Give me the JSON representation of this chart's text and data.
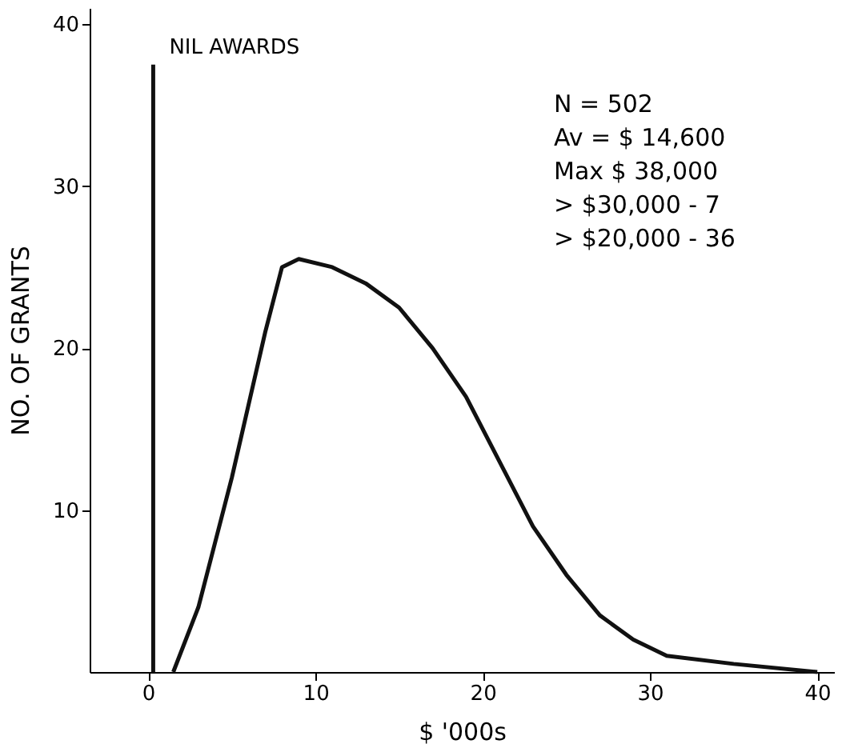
{
  "chart_data": {
    "type": "line",
    "xlabel": "$ '000s",
    "ylabel": "NO. OF GRANTS",
    "xlim": [
      -3.5,
      41
    ],
    "ylim": [
      0,
      41
    ],
    "xticks": [
      0,
      10,
      20,
      30,
      40
    ],
    "yticks": [
      10,
      20,
      30,
      40
    ],
    "grid": false,
    "marker": "none",
    "line_style": "solid",
    "series": [
      {
        "color": "#111111",
        "x": [
          0.3,
          0.3
        ],
        "values": [
          0,
          37.5
        ]
      },
      {
        "color": "#111111",
        "x": [
          1.5,
          3,
          5,
          7,
          8,
          9,
          11,
          13,
          15,
          17,
          19,
          21,
          23,
          25,
          27,
          29,
          31,
          35,
          40
        ],
        "values": [
          0,
          4,
          12,
          21,
          25,
          25.5,
          25,
          24,
          22.5,
          20,
          17,
          13,
          9,
          6,
          3.5,
          2,
          1,
          0.5,
          0
        ]
      }
    ],
    "annotations": [
      {
        "text": "NIL AWARDS",
        "x": 0.3,
        "y": 37.5
      },
      "N = 502",
      "Av = $ 14,600",
      "Max $ 38,000",
      "> $30,000 - 7",
      "> $20,000 - 36"
    ]
  }
}
